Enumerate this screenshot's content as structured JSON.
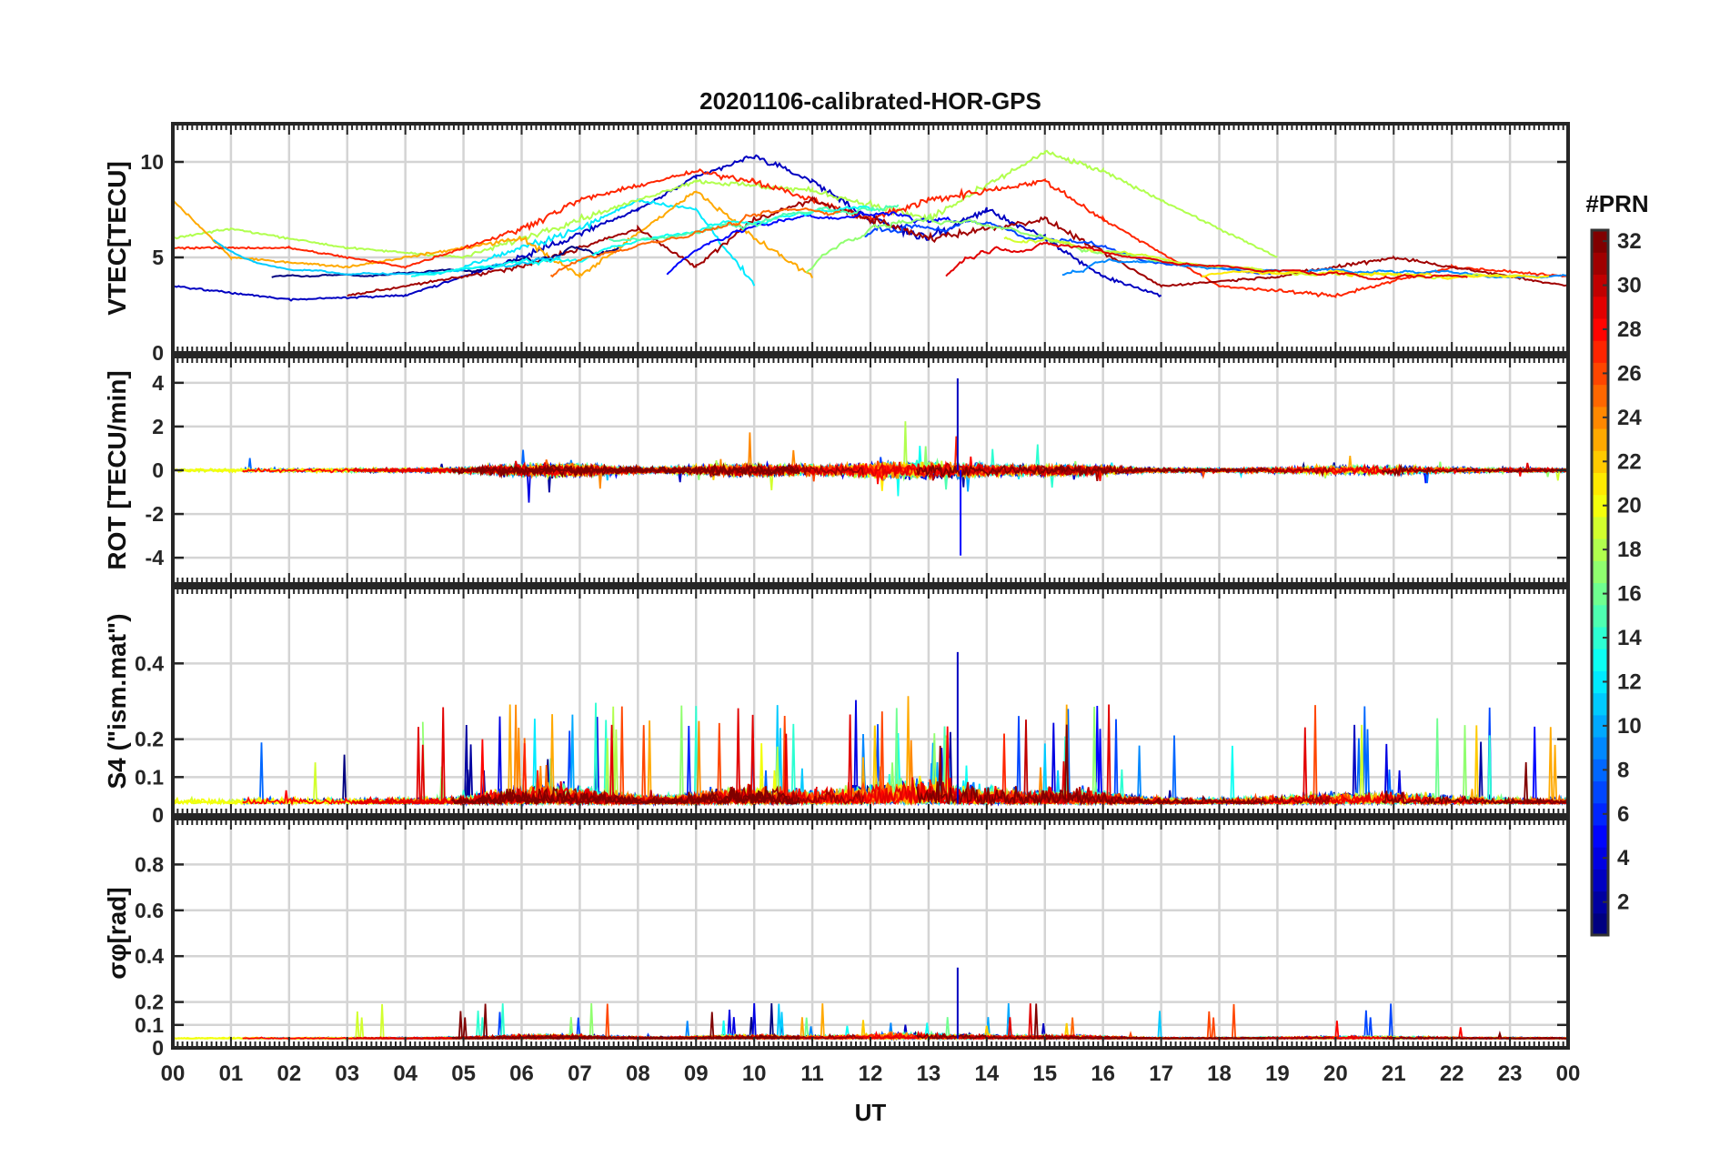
{
  "chart_data": {
    "type": "line",
    "title": "20201106-calibrated-HOR-GPS",
    "xlabel": "UT",
    "x_ticks": [
      "00",
      "01",
      "02",
      "03",
      "04",
      "05",
      "06",
      "07",
      "08",
      "09",
      "10",
      "11",
      "12",
      "13",
      "14",
      "15",
      "16",
      "17",
      "18",
      "19",
      "20",
      "21",
      "22",
      "23",
      "00"
    ],
    "x_range_hours": [
      0,
      24
    ],
    "grid": true,
    "panels": [
      {
        "id": "vtec",
        "ylabel": "VTEC[TECU]",
        "ylim": [
          0,
          12
        ],
        "yticks": [
          0,
          5,
          10
        ],
        "ytick_labels": [
          "0",
          "5",
          "10"
        ],
        "baseline": 4.5,
        "description_series": [
          {
            "name": "PRN 3",
            "prn": 3,
            "points_hr_tecu": [
              [
                0,
                3.5
              ],
              [
                2,
                2.8
              ],
              [
                4,
                3.0
              ],
              [
                6,
                5.0
              ],
              [
                8,
                7.5
              ],
              [
                9,
                9.2
              ],
              [
                10,
                10.3
              ],
              [
                11,
                9.0
              ],
              [
                12,
                7.0
              ],
              [
                13,
                6.0
              ],
              [
                14,
                7.5
              ],
              [
                15,
                6.0
              ],
              [
                16,
                4.0
              ],
              [
                17,
                3.0
              ]
            ]
          },
          {
            "name": "PRN 12",
            "prn": 12,
            "points_hr_tecu": [
              [
                5,
                4.5
              ],
              [
                7,
                6.5
              ],
              [
                8,
                8.0
              ],
              [
                9,
                7.5
              ],
              [
                10,
                3.5
              ]
            ]
          },
          {
            "name": "PRN 18",
            "prn": 18,
            "points_hr_tecu": [
              [
                0,
                6.0
              ],
              [
                1,
                6.5
              ],
              [
                3,
                5.5
              ],
              [
                5,
                5.0
              ],
              [
                7,
                7.0
              ],
              [
                9,
                9.0
              ],
              [
                11,
                8.5
              ],
              [
                13,
                7.0
              ],
              [
                15,
                10.5
              ],
              [
                16,
                9.5
              ],
              [
                17,
                8.0
              ],
              [
                19,
                5.0
              ]
            ]
          },
          {
            "name": "PRN 23",
            "prn": 23,
            "points_hr_tecu": [
              [
                0,
                8.0
              ],
              [
                1,
                5.0
              ],
              [
                3,
                4.5
              ],
              [
                5,
                5.5
              ],
              [
                6,
                6.0
              ],
              [
                7,
                4.0
              ],
              [
                9,
                8.5
              ],
              [
                10,
                6.0
              ],
              [
                11,
                4.0
              ]
            ]
          },
          {
            "name": "PRN 27",
            "prn": 27,
            "points_hr_tecu": [
              [
                0,
                5.5
              ],
              [
                2,
                5.5
              ],
              [
                4,
                4.5
              ],
              [
                6,
                6.5
              ],
              [
                7,
                8.0
              ],
              [
                9,
                9.5
              ],
              [
                10,
                9.0
              ],
              [
                12,
                7.0
              ],
              [
                13,
                8.0
              ],
              [
                15,
                9.0
              ],
              [
                16,
                7.0
              ],
              [
                18,
                3.5
              ],
              [
                20,
                3.0
              ],
              [
                22,
                4.5
              ],
              [
                24,
                4.0
              ]
            ]
          },
          {
            "name": "PRN 31",
            "prn": 31,
            "points_hr_tecu": [
              [
                3,
                3.0
              ],
              [
                4,
                3.5
              ],
              [
                6,
                4.5
              ],
              [
                8,
                6.5
              ],
              [
                9,
                4.5
              ],
              [
                10,
                7.0
              ],
              [
                11,
                8.0
              ],
              [
                13,
                6.0
              ],
              [
                15,
                7.0
              ],
              [
                17,
                3.5
              ],
              [
                19,
                4.0
              ],
              [
                21,
                5.0
              ],
              [
                23,
                4.0
              ],
              [
                24,
                3.5
              ]
            ]
          }
        ]
      },
      {
        "id": "rot",
        "ylabel": "ROT [TECU/min]",
        "ylim": [
          -5.2,
          5.2
        ],
        "yticks": [
          -4,
          -2,
          0,
          2,
          4
        ],
        "ytick_labels": [
          "-4",
          "-2",
          "0",
          "2",
          "4"
        ],
        "baseline": 0,
        "peak_max": 4.2,
        "peak_min": -3.9
      },
      {
        "id": "s4",
        "ylabel": "S4 (\"ism.mat\")",
        "ylim": [
          0,
          0.6
        ],
        "yticks": [
          0,
          0.1,
          0.2,
          0.4
        ],
        "ytick_labels": [
          "0",
          "0.1",
          "0.2",
          "0.4"
        ],
        "baseline": 0.03,
        "peak_max": 0.43
      },
      {
        "id": "sigphi",
        "ylabel": "σφ[rad]",
        "ylim": [
          0,
          1.0
        ],
        "yticks": [
          0,
          0.1,
          0.2,
          0.4,
          0.6,
          0.8
        ],
        "ytick_labels": [
          "0",
          "0.1",
          "0.2",
          "0.4",
          "0.6",
          "0.8"
        ],
        "baseline": 0.04,
        "peak_max": 0.35
      }
    ],
    "colorbar": {
      "label": "#PRN",
      "range": [
        1,
        32
      ],
      "ticks": [
        2,
        4,
        6,
        8,
        10,
        12,
        14,
        16,
        18,
        20,
        22,
        24,
        26,
        28,
        30,
        32
      ],
      "colormap": "jet"
    },
    "prn_series": [
      1,
      2,
      3,
      4,
      5,
      6,
      7,
      8,
      9,
      10,
      11,
      12,
      13,
      14,
      15,
      16,
      17,
      18,
      19,
      20,
      21,
      22,
      23,
      24,
      25,
      26,
      27,
      28,
      29,
      30,
      31,
      32
    ]
  }
}
